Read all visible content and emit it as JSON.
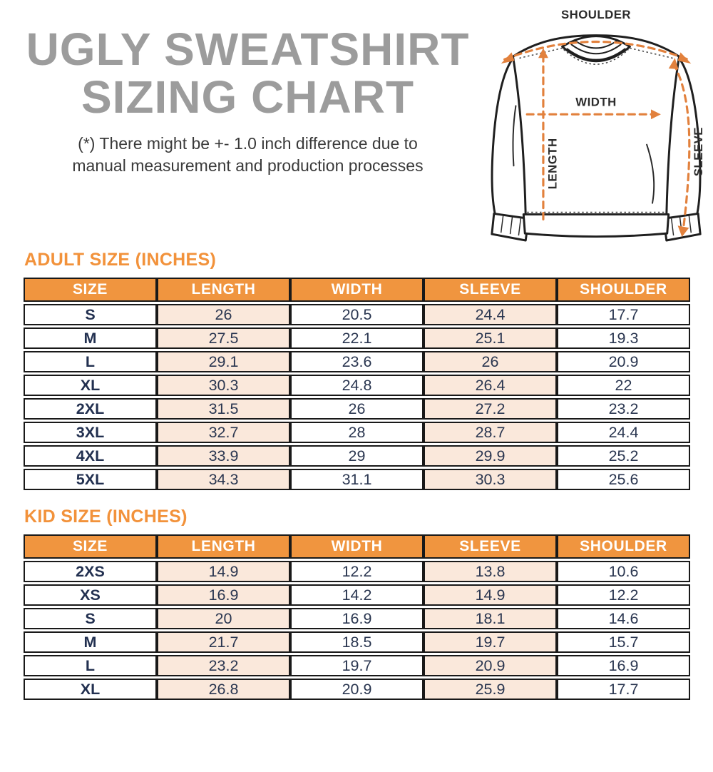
{
  "page": {
    "title_line1": "UGLY SWEATSHIRT",
    "title_line2": "SIZING CHART",
    "disclaimer_line1": "(*) There might be +- 1.0 inch difference due to",
    "disclaimer_line2": "manual measurement and production processes"
  },
  "diagram": {
    "shoulder_label": "SHOULDER",
    "width_label": "WIDTH",
    "length_label": "LENGTH",
    "sleeve_label": "SLEEVE"
  },
  "colors": {
    "accent_orange": "#F2923B",
    "table_header_bg": "#F0953F",
    "table_header_text": "#FFFFFF",
    "highlight_column_bg": "#FAE8DB",
    "value_text": "#2A3650",
    "table_border": "#191919",
    "title_gray": "#9C9C9C",
    "diagram_dash_orange": "#E2813D"
  },
  "adult_table": {
    "heading": "ADULT SIZE (INCHES)",
    "columns": [
      "SIZE",
      "LENGTH",
      "WIDTH",
      "SLEEVE",
      "SHOULDER"
    ],
    "rows": [
      [
        "S",
        "26",
        "20.5",
        "24.4",
        "17.7"
      ],
      [
        "M",
        "27.5",
        "22.1",
        "25.1",
        "19.3"
      ],
      [
        "L",
        "29.1",
        "23.6",
        "26",
        "20.9"
      ],
      [
        "XL",
        "30.3",
        "24.8",
        "26.4",
        "22"
      ],
      [
        "2XL",
        "31.5",
        "26",
        "27.2",
        "23.2"
      ],
      [
        "3XL",
        "32.7",
        "28",
        "28.7",
        "24.4"
      ],
      [
        "4XL",
        "33.9",
        "29",
        "29.9",
        "25.2"
      ],
      [
        "5XL",
        "34.3",
        "31.1",
        "30.3",
        "25.6"
      ]
    ]
  },
  "kid_table": {
    "heading": "KID SIZE (INCHES)",
    "columns": [
      "SIZE",
      "LENGTH",
      "WIDTH",
      "SLEEVE",
      "SHOULDER"
    ],
    "rows": [
      [
        "2XS",
        "14.9",
        "12.2",
        "13.8",
        "10.6"
      ],
      [
        "XS",
        "16.9",
        "14.2",
        "14.9",
        "12.2"
      ],
      [
        "S",
        "20",
        "16.9",
        "18.1",
        "14.6"
      ],
      [
        "M",
        "21.7",
        "18.5",
        "19.7",
        "15.7"
      ],
      [
        "L",
        "23.2",
        "19.7",
        "20.9",
        "16.9"
      ],
      [
        "XL",
        "26.8",
        "20.9",
        "25.9",
        "17.7"
      ]
    ]
  }
}
